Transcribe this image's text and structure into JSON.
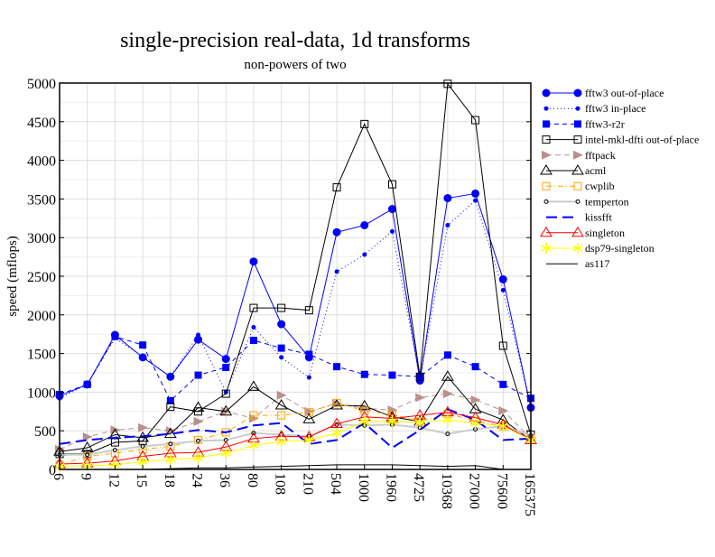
{
  "chart_data": {
    "type": "line",
    "title": "single-precision real-data, 1d transforms",
    "subtitle": "non-powers of two",
    "xlabel": "",
    "ylabel": "speed (mflops)",
    "ylim": [
      0,
      5000
    ],
    "yticks": [
      0,
      500,
      1000,
      1500,
      2000,
      2500,
      3000,
      3500,
      4000,
      4500,
      5000
    ],
    "grid": true,
    "legend_position": "right",
    "categories": [
      "6",
      "9",
      "12",
      "15",
      "18",
      "24",
      "36",
      "80",
      "108",
      "210",
      "504",
      "1000",
      "1960",
      "4725",
      "10368",
      "27000",
      "75600",
      "165375"
    ],
    "series": [
      {
        "name": "fftw3 out-of-place",
        "color": "#0000ff",
        "dash": "",
        "marker": "filled-circle",
        "values": [
          950,
          1100,
          1740,
          1450,
          1200,
          1680,
          1430,
          2690,
          1880,
          1450,
          3070,
          3160,
          3370,
          1150,
          3510,
          3570,
          2460,
          800
        ]
      },
      {
        "name": "fftw3 in-place",
        "color": "#0000ff",
        "dash": "1,3",
        "marker": "small-dot",
        "values": [
          920,
          1100,
          1700,
          1460,
          1200,
          1740,
          1000,
          1840,
          1450,
          1190,
          2560,
          2780,
          3080,
          1170,
          3160,
          3480,
          2320,
          800
        ]
      },
      {
        "name": "fftw3-r2r",
        "color": "#0000ff",
        "dash": "5,4",
        "marker": "filled-square",
        "values": [
          970,
          1100,
          1720,
          1610,
          890,
          1220,
          1320,
          1670,
          1570,
          1490,
          1330,
          1230,
          1220,
          1200,
          1480,
          1330,
          1100,
          920
        ]
      },
      {
        "name": "intel-mkl-dfti out-of-place",
        "color": "#000000",
        "dash": "",
        "marker": "open-square",
        "values": [
          200,
          200,
          350,
          370,
          810,
          750,
          980,
          2090,
          2090,
          2060,
          3650,
          4470,
          3690,
          1200,
          4990,
          4520,
          1600,
          450
        ]
      },
      {
        "name": "fftpack",
        "color": "#bc8f8f",
        "dash": "6,4",
        "marker": "right-triangle",
        "values": [
          260,
          420,
          510,
          540,
          500,
          620,
          750,
          660,
          960,
          750,
          850,
          790,
          770,
          930,
          980,
          900,
          760,
          400
        ]
      },
      {
        "name": "acml",
        "color": "#000000",
        "dash": "",
        "marker": "open-triangle",
        "values": [
          230,
          280,
          450,
          410,
          460,
          800,
          750,
          1070,
          830,
          650,
          830,
          820,
          680,
          620,
          1200,
          780,
          640,
          380
        ]
      },
      {
        "name": "cwplib",
        "color": "#ffa500",
        "dash": "6,3,1,3",
        "marker": "open-square",
        "values": [
          60,
          170,
          210,
          260,
          300,
          380,
          480,
          700,
          700,
          740,
          860,
          760,
          710,
          620,
          720,
          630,
          560,
          400
        ]
      },
      {
        "name": "temperton",
        "color": "#cccccc",
        "dash": "",
        "marker": "small-circle",
        "values": [
          190,
          190,
          250,
          300,
          330,
          370,
          380,
          470,
          450,
          430,
          580,
          570,
          580,
          540,
          460,
          520,
          560,
          440
        ]
      },
      {
        "name": "kissfft",
        "color": "#0000ff",
        "dash": "12,6",
        "marker": "none",
        "values": [
          330,
          380,
          410,
          430,
          460,
          510,
          480,
          570,
          600,
          330,
          380,
          600,
          280,
          510,
          780,
          640,
          380,
          400
        ]
      },
      {
        "name": "singleton",
        "color": "#ff0000",
        "dash": "",
        "marker": "open-triangle",
        "values": [
          70,
          80,
          110,
          170,
          210,
          220,
          290,
          400,
          430,
          420,
          590,
          680,
          660,
          700,
          740,
          670,
          580,
          380
        ]
      },
      {
        "name": "dsp79-singleton",
        "color": "#ffff00",
        "dash": "",
        "marker": "star",
        "values": [
          40,
          50,
          60,
          100,
          130,
          150,
          210,
          310,
          360,
          380,
          470,
          620,
          620,
          610,
          640,
          600,
          560,
          380
        ]
      },
      {
        "name": "as117",
        "color": "#000000",
        "dash": "",
        "marker": "none",
        "values": [
          0,
          0,
          0,
          0,
          10,
          20,
          20,
          30,
          40,
          50,
          60,
          60,
          60,
          50,
          40,
          50,
          0,
          0
        ]
      }
    ]
  }
}
